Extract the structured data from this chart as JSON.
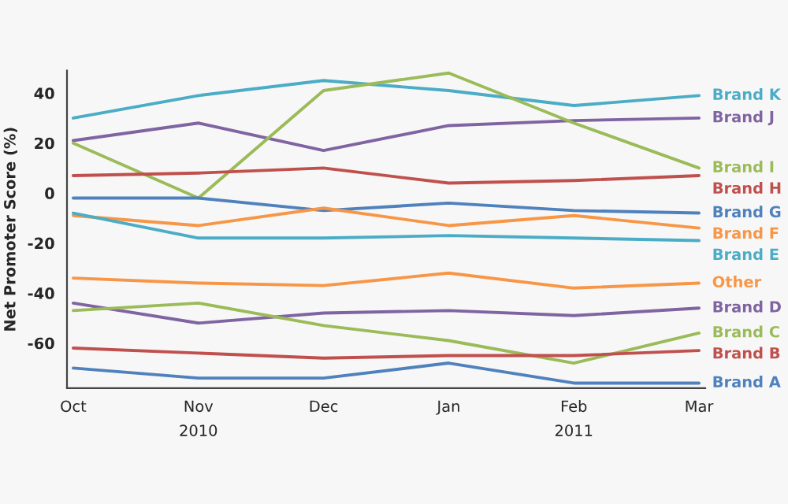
{
  "chart_data": {
    "type": "line",
    "ylabel": "Net Promoter Score (%)",
    "categories": [
      "Oct",
      "Nov",
      "Dec",
      "Jan",
      "Feb",
      "Mar"
    ],
    "series": [
      {
        "name": "Brand K",
        "color": "#4bacc6",
        "values": [
          30,
          39,
          45,
          41,
          35,
          39
        ]
      },
      {
        "name": "Brand J",
        "color": "#8064a2",
        "values": [
          21,
          28,
          17,
          27,
          29,
          30
        ]
      },
      {
        "name": "Brand I",
        "color": "#9bbb59",
        "values": [
          20,
          -2,
          41,
          48,
          28,
          10
        ]
      },
      {
        "name": "Brand H",
        "color": "#c0504d",
        "values": [
          7,
          8,
          10,
          4,
          5,
          7
        ]
      },
      {
        "name": "Brand G",
        "color": "#4f81bd",
        "values": [
          -2,
          -2,
          -7,
          -4,
          -7,
          -8
        ]
      },
      {
        "name": "Brand F",
        "color": "#f79646",
        "values": [
          -9,
          -13,
          -6,
          -13,
          -9,
          -14
        ]
      },
      {
        "name": "Brand E",
        "color": "#4bacc6",
        "values": [
          -8,
          -18,
          -18,
          -17,
          -18,
          -19
        ]
      },
      {
        "name": "Other",
        "color": "#f79646",
        "values": [
          -34,
          -36,
          -37,
          -32,
          -38,
          -36
        ]
      },
      {
        "name": "Brand D",
        "color": "#8064a2",
        "values": [
          -44,
          -52,
          -48,
          -47,
          -49,
          -46
        ]
      },
      {
        "name": "Brand C",
        "color": "#9bbb59",
        "values": [
          -47,
          -44,
          -53,
          -59,
          -68,
          -56
        ]
      },
      {
        "name": "Brand B",
        "color": "#c0504d",
        "values": [
          -62,
          -64,
          -66,
          -65,
          -65,
          -63
        ]
      },
      {
        "name": "Brand A",
        "color": "#4f81bd",
        "values": [
          -70,
          -74,
          -74,
          -68,
          -76,
          -76
        ]
      }
    ],
    "ylim": [
      -78,
      49
    ],
    "yticks": [
      -60,
      -40,
      -20,
      0,
      20,
      40
    ],
    "annotations": [
      "2010",
      "2011"
    ],
    "grid": false,
    "legend": false,
    "marker": "none",
    "line_style": "solid"
  }
}
